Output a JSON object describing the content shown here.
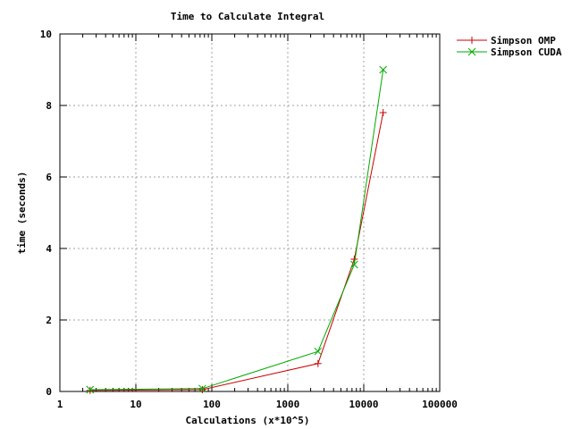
{
  "chart_data": {
    "type": "line",
    "title": "Time to Calculate Integral",
    "xlabel": "Calculations (x*10^5)",
    "ylabel": "time (seconds)",
    "x_scale": "log",
    "xlim": [
      1,
      100000
    ],
    "ylim": [
      0,
      10
    ],
    "x_ticks": [
      1,
      10,
      100,
      1000,
      10000,
      100000
    ],
    "x_tick_labels": [
      "1",
      "10",
      "100",
      "1000",
      "10000",
      "100000"
    ],
    "y_ticks": [
      0,
      2,
      4,
      6,
      8,
      10
    ],
    "y_tick_labels": [
      "0",
      "2",
      "4",
      "6",
      "8",
      "10"
    ],
    "grid": true,
    "legend_position": "top-right",
    "series": [
      {
        "name": "Simpson OMP",
        "color": "#cc0000",
        "marker": "plus",
        "x": [
          2.5,
          75,
          2500,
          7500,
          18000
        ],
        "y": [
          0.03,
          0.05,
          0.78,
          3.7,
          7.8
        ]
      },
      {
        "name": "Simpson CUDA",
        "color": "#00aa00",
        "marker": "cross",
        "x": [
          2.5,
          75,
          2500,
          7500,
          18000
        ],
        "y": [
          0.05,
          0.08,
          1.12,
          3.55,
          9.0
        ]
      }
    ]
  }
}
